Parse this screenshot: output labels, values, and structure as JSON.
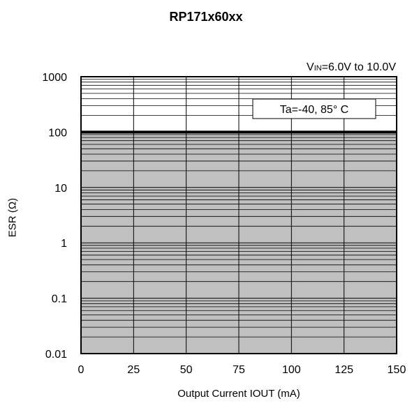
{
  "chart_data": {
    "type": "area",
    "title": "RP171x60xx",
    "xlabel": "Output  Current IOUT (mA)",
    "ylabel": "ESR (Ω)",
    "x_ticks": [
      0,
      25,
      50,
      75,
      100,
      125,
      150
    ],
    "y_ticks": [
      0.01,
      0.1,
      1,
      10,
      100,
      1000
    ],
    "y_tick_labels": [
      "0.01",
      "0.1",
      "1",
      "10",
      "100",
      "1000"
    ],
    "xlim": [
      0,
      150
    ],
    "ylim": [
      0.01,
      1000
    ],
    "y_scale": "log",
    "grid": true,
    "annotations": {
      "condition": {
        "prefix": "V",
        "sub": "IN",
        "suffix": "=6.0V to 10.0V"
      },
      "temperature": "Ta=-40, 85°  C"
    },
    "stable_region": {
      "x": [
        0,
        150
      ],
      "esr_min": 0.01,
      "esr_max": 100,
      "fill": "#c0c0c0"
    }
  }
}
